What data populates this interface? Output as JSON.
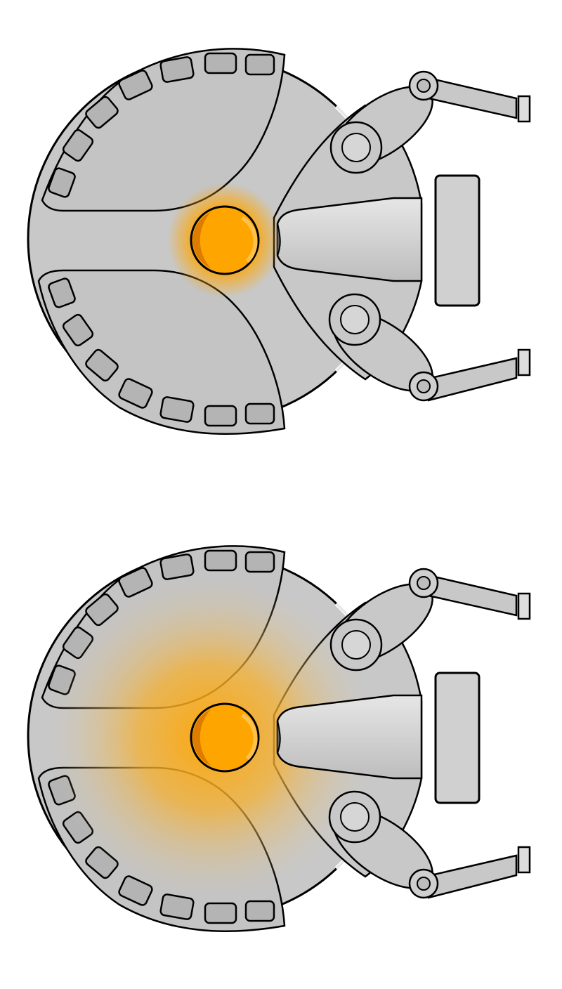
{
  "sprites": [
    {
      "name": "robot-base-glow-small",
      "glow_level": 0.35
    },
    {
      "name": "robot-base-glow-large",
      "glow_level": 1.0
    }
  ],
  "colors": {
    "hull": "#c8c8c8",
    "hull_shadow": "#b4b4b4",
    "outline": "#000000",
    "dark_metal": "#555555",
    "core": "#ffa500",
    "core_shade": "#e07a00",
    "core_highlight": "#ffc14d",
    "glow": "#ffa500",
    "background": "#ffffff"
  },
  "icons": [
    "robot-base-icon",
    "energy-core-icon",
    "claw-arm-icon",
    "cannon-icon"
  ]
}
